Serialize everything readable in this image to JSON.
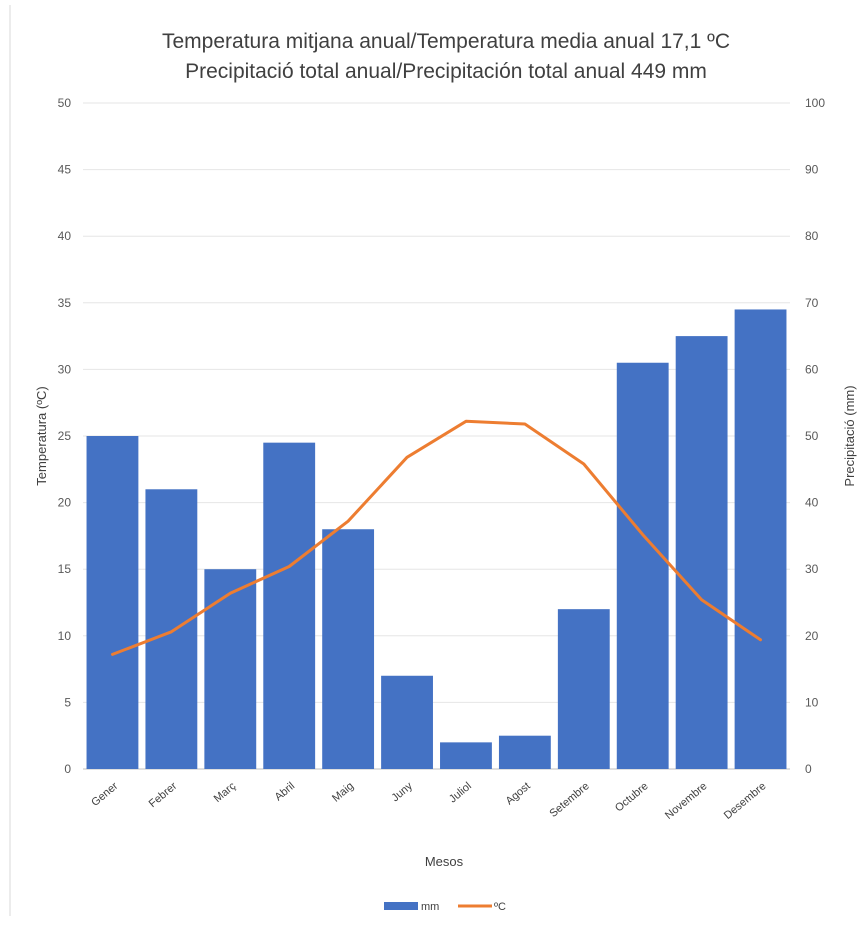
{
  "chart_data": {
    "type": "bar",
    "title": "Temperatura mitjana anual/Temperatura media anual 17,1 ºC",
    "subtitle": "Precipitació total anual/Precipitación total anual 449 mm",
    "xlabel": "Mesos",
    "ylabel_left": "Temperatura (ºC)",
    "ylabel_right": "Precipitació (mm)",
    "categories": [
      "Gener",
      "Febrer",
      "Març",
      "Abril",
      "Maig",
      "Juny",
      "Juliol",
      "Agost",
      "Setembre",
      "Octubre",
      "Novembre",
      "Desembre"
    ],
    "series": [
      {
        "name": "mm",
        "type": "bar",
        "axis": "right",
        "color": "#4472C4",
        "values": [
          50,
          42,
          30,
          49,
          36,
          14,
          4,
          5,
          24,
          61,
          65,
          69
        ]
      },
      {
        "name": "ºC",
        "type": "line",
        "axis": "left",
        "color": "#ED7D31",
        "values": [
          8.6,
          10.3,
          13.2,
          15.2,
          18.6,
          23.4,
          26.1,
          25.9,
          22.9,
          17.6,
          12.7,
          9.7
        ]
      }
    ],
    "ylim_left": [
      0,
      50
    ],
    "ylim_right": [
      0,
      100
    ],
    "yticks_left": [
      0,
      5,
      10,
      15,
      20,
      25,
      30,
      35,
      40,
      45,
      50
    ],
    "yticks_right": [
      0,
      10,
      20,
      30,
      40,
      50,
      60,
      70,
      80,
      90,
      100
    ],
    "grid": true,
    "legend_position": "bottom"
  }
}
